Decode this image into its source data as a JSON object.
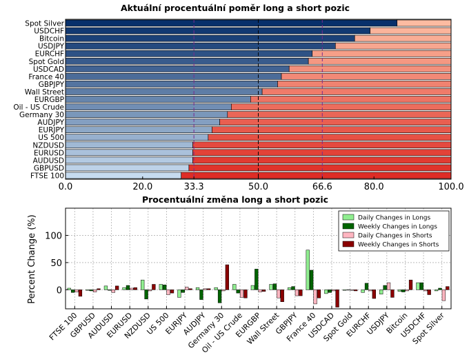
{
  "chart_data": [
    {
      "type": "bar",
      "orientation": "horizontal",
      "stacked": true,
      "title": "Aktuální procentuální poměr long a short pozic",
      "categories": [
        "Spot Silver",
        "USDCHF",
        "Bitcoin",
        "USDJPY",
        "EURCHF",
        "Spot Gold",
        "USDCAD",
        "France 40",
        "GBPJPY",
        "Wall Street",
        "EURGBP",
        "Oil - US Crude",
        "Germany 30",
        "AUDJPY",
        "EURJPY",
        "US 500",
        "NZDUSD",
        "EURUSD",
        "AUDUSD",
        "GBPUSD",
        "FTSE 100"
      ],
      "series": [
        {
          "values": [
            86,
            79,
            75,
            70,
            64,
            63,
            58,
            56,
            55,
            51,
            48,
            43,
            42,
            40,
            38,
            37,
            33,
            33,
            33,
            32,
            30
          ]
        },
        {
          "values": [
            14,
            21,
            25,
            30,
            36,
            37,
            42,
            44,
            45,
            49,
            52,
            57,
            58,
            60,
            62,
            63,
            67,
            67,
            67,
            68,
            70
          ]
        }
      ],
      "xlim": [
        0,
        100
      ],
      "xticks": [
        "0.0",
        "20.0",
        "33.3",
        "50.0",
        "66.6",
        "80.0",
        "100.0"
      ],
      "xtick_values": [
        0,
        20,
        33.3,
        50,
        66.6,
        80,
        100
      ],
      "highlight_ticks": [
        "33.3",
        "66.6"
      ],
      "reference_lines": [
        33.3,
        50,
        66.6
      ],
      "colors": {
        "long_gradient": [
          "#08306b",
          "#c6dbef"
        ],
        "short_gradient": [
          "#fcbba1",
          "#de2d26"
        ],
        "highlight_line": "#7b2a8e",
        "center_line": "#000000"
      }
    },
    {
      "type": "bar",
      "title": "Procentuální změna long a short pozic",
      "ylabel": "Percent Change (%)",
      "ylim": [
        -35,
        150
      ],
      "yticks": [
        "0",
        "50",
        "100"
      ],
      "ytick_values": [
        0,
        50,
        100
      ],
      "grid": true,
      "legend_position": "top-right",
      "categories": [
        "FTSE 100",
        "GBPUSD",
        "AUDUSD",
        "EURUSD",
        "NZDUSD",
        "US 500",
        "EURJPY",
        "AUDJPY",
        "Germany 30",
        "Oil - US Crude",
        "EURGBP",
        "Wall Street",
        "GBPJPY",
        "France 40",
        "USDCAD",
        "Spot Gold",
        "EURCHF",
        "USDJPY",
        "Bitcoin",
        "USDCHF",
        "Spot Silver"
      ],
      "series": [
        {
          "name": "Daily Changes in Longs",
          "color": "#90ee90",
          "values": [
            3,
            -1,
            7,
            4,
            18,
            10,
            -14,
            4,
            4,
            10,
            8,
            10,
            4,
            73,
            -7,
            -1,
            -5,
            -8,
            -3,
            13,
            -2
          ]
        },
        {
          "name": "Weekly Changes in Longs",
          "color": "#006400",
          "values": [
            -5,
            -2,
            -1,
            8,
            -17,
            9,
            -5,
            -18,
            -24,
            -6,
            38,
            11,
            6,
            36,
            -5,
            0,
            12,
            8,
            -4,
            13,
            3
          ]
        },
        {
          "name": "Daily Changes in Shorts",
          "color": "#ffb6c1",
          "values": [
            -4,
            -4,
            -5,
            3,
            -2,
            -9,
            5,
            2,
            -2,
            -14,
            -4,
            -15,
            -11,
            -26,
            -2,
            -1,
            -2,
            13,
            -2,
            -2,
            -20
          ]
        },
        {
          "name": "Weekly Changes in Shorts",
          "color": "#8b0000",
          "values": [
            -12,
            2,
            7,
            4,
            10,
            -6,
            2,
            2,
            46,
            -15,
            -3,
            -22,
            -11,
            -15,
            -32,
            -2,
            -16,
            -14,
            18,
            -9,
            6
          ]
        }
      ]
    }
  ]
}
